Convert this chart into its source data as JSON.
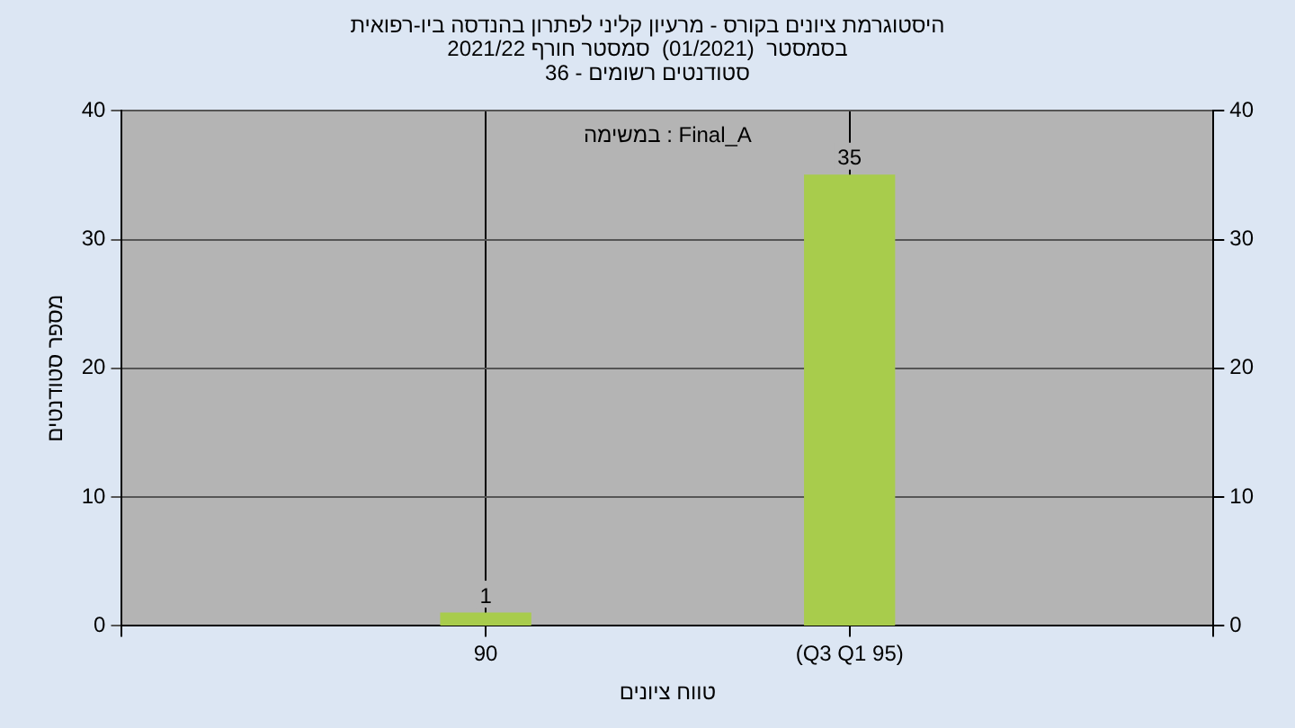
{
  "chart_data": {
    "type": "bar",
    "title": "היסטוגרמת ציונים בקורס - מרעיון קליני לפתרון בהנדסה ביו-רפואית",
    "subtitle": "בסמסטר  (01/2021)  סמסטר חורף 2021/22\nסטודנטים רשומים - 36",
    "xlabel": "טווח ציונים",
    "ylabel": "מספר סטודנטים",
    "annotations": [
      "במשימה : Final_A"
    ],
    "categories": [
      null,
      "90",
      "(Q3 Q1 95)",
      null
    ],
    "values": [
      null,
      1,
      35,
      null
    ],
    "color": "#a8cc4c",
    "ylim": [
      0,
      40
    ],
    "yticks": [
      0,
      10,
      20,
      30,
      40
    ],
    "y2lim": [
      0,
      40
    ],
    "y2ticks": [
      0,
      10,
      20,
      30,
      40
    ],
    "grid": true,
    "data_labels": true
  }
}
